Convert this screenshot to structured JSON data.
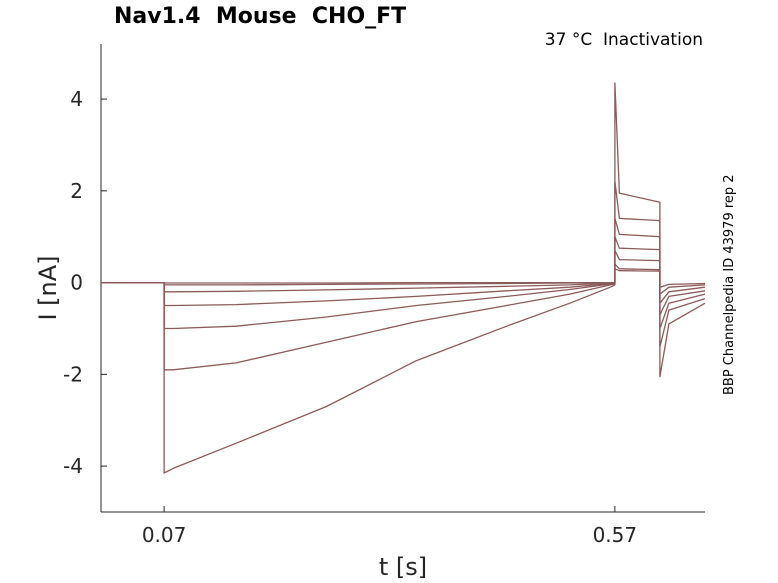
{
  "title": "Nav1.4  Mouse  CHO_FT",
  "subtitle": "37 °C  Inactivation",
  "side_note": "BBP Channelpedia ID 43979 rep 2",
  "colors": {
    "trace": "#8b5a5a",
    "axis": "#262626"
  },
  "chart_data": {
    "type": "line",
    "title": "Nav1.4  Mouse  CHO_FT",
    "xlabel": "t [s]",
    "ylabel": "I [nA]",
    "xlim": [
      0.0,
      0.67
    ],
    "ylim": [
      -5.0,
      5.2
    ],
    "xticks": [
      0.07,
      0.57
    ],
    "xtick_labels": [
      "0.07",
      "0.57"
    ],
    "yticks": [
      -4,
      -2,
      0,
      2,
      4
    ],
    "ytick_labels": [
      "-4",
      "-2",
      "0",
      "2",
      "4"
    ],
    "grid": false,
    "series": [
      {
        "x": [
          0.0,
          0.07,
          0.07,
          0.08,
          0.15,
          0.25,
          0.35,
          0.45,
          0.52,
          0.565,
          0.57,
          0.57,
          0.575,
          0.62,
          0.62,
          0.63,
          0.67
        ],
        "y": [
          0.0,
          0.0,
          -4.15,
          -4.05,
          -3.5,
          -2.7,
          -1.7,
          -0.95,
          -0.45,
          -0.1,
          -0.05,
          4.35,
          1.95,
          1.75,
          -2.05,
          -0.9,
          -0.45
        ]
      },
      {
        "x": [
          0.0,
          0.07,
          0.07,
          0.08,
          0.15,
          0.25,
          0.35,
          0.45,
          0.52,
          0.565,
          0.57,
          0.57,
          0.575,
          0.62,
          0.62,
          0.63,
          0.67
        ],
        "y": [
          0.0,
          0.0,
          -1.9,
          -1.9,
          -1.75,
          -1.3,
          -0.85,
          -0.5,
          -0.25,
          -0.05,
          -0.03,
          2.2,
          1.4,
          1.35,
          -1.4,
          -0.6,
          -0.35
        ]
      },
      {
        "x": [
          0.0,
          0.07,
          0.07,
          0.08,
          0.15,
          0.25,
          0.35,
          0.45,
          0.52,
          0.565,
          0.57,
          0.57,
          0.575,
          0.62,
          0.62,
          0.63,
          0.67
        ],
        "y": [
          0.0,
          0.0,
          -1.0,
          -1.0,
          -0.95,
          -0.75,
          -0.5,
          -0.3,
          -0.15,
          -0.03,
          -0.02,
          1.4,
          1.05,
          1.0,
          -1.0,
          -0.45,
          -0.25
        ]
      },
      {
        "x": [
          0.0,
          0.07,
          0.07,
          0.08,
          0.15,
          0.25,
          0.35,
          0.45,
          0.52,
          0.565,
          0.57,
          0.57,
          0.575,
          0.62,
          0.62,
          0.63,
          0.67
        ],
        "y": [
          0.0,
          0.0,
          -0.5,
          -0.5,
          -0.48,
          -0.4,
          -0.3,
          -0.18,
          -0.1,
          -0.02,
          -0.01,
          1.0,
          0.75,
          0.72,
          -0.7,
          -0.3,
          -0.18
        ]
      },
      {
        "x": [
          0.0,
          0.07,
          0.07,
          0.08,
          0.15,
          0.25,
          0.35,
          0.45,
          0.52,
          0.565,
          0.57,
          0.57,
          0.575,
          0.62,
          0.62,
          0.63,
          0.67
        ],
        "y": [
          0.0,
          0.0,
          -0.2,
          -0.2,
          -0.19,
          -0.16,
          -0.12,
          -0.08,
          -0.05,
          -0.01,
          0.0,
          0.7,
          0.5,
          0.48,
          -0.45,
          -0.2,
          -0.1
        ]
      },
      {
        "x": [
          0.0,
          0.07,
          0.07,
          0.08,
          0.15,
          0.25,
          0.35,
          0.45,
          0.52,
          0.565,
          0.57,
          0.57,
          0.575,
          0.62,
          0.62,
          0.63,
          0.67
        ],
        "y": [
          0.0,
          0.0,
          -0.05,
          -0.05,
          -0.05,
          -0.04,
          -0.03,
          -0.02,
          -0.01,
          0.0,
          0.0,
          0.4,
          0.3,
          0.28,
          -0.25,
          -0.1,
          -0.05
        ]
      },
      {
        "x": [
          0.0,
          0.07,
          0.07,
          0.08,
          0.15,
          0.25,
          0.35,
          0.45,
          0.52,
          0.565,
          0.57,
          0.57,
          0.575,
          0.62,
          0.62,
          0.63,
          0.67
        ],
        "y": [
          0.0,
          0.0,
          -0.01,
          -0.01,
          -0.01,
          -0.01,
          0.0,
          0.0,
          0.0,
          0.0,
          0.0,
          0.3,
          0.26,
          0.25,
          -0.1,
          -0.04,
          -0.02
        ]
      }
    ]
  }
}
